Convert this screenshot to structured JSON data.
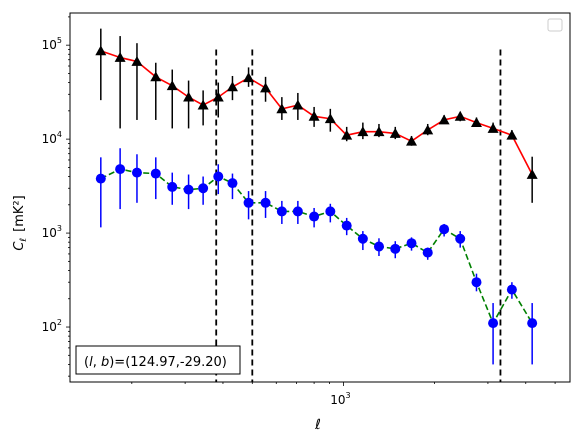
{
  "chart_data": {
    "type": "line",
    "xscale": "log",
    "yscale": "log",
    "xlim": [
      125,
      5600
    ],
    "ylim": [
      26,
      220000
    ],
    "xlabel": "ℓ",
    "ylabel_main": "C",
    "ylabel_sub": "ℓ",
    "ylabel_unit": "[mK²]",
    "x_major_ticks": [
      {
        "value": 1000,
        "base": "10",
        "exp": "3"
      }
    ],
    "y_major_ticks": [
      {
        "value": 100,
        "base": "10",
        "exp": "2"
      },
      {
        "value": 1000,
        "base": "10",
        "exp": "3"
      },
      {
        "value": 10000,
        "base": "10",
        "exp": "4"
      },
      {
        "value": 100000,
        "base": "10",
        "exp": "5"
      }
    ],
    "annotation": "(l, b)=(124.97,-29.20)",
    "annotation_parts": {
      "pre": "(",
      "l": "l",
      "comma": ", ",
      "b": "b",
      "post": ")=(124.97,-29.20)"
    },
    "vlines": [
      380,
      500,
      3300
    ],
    "vline_top": 90000,
    "series": [
      {
        "marker": "triangle",
        "color": "#000000",
        "line_color": "#ff0000",
        "line_style": "solid",
        "x": [
          158,
          183,
          208,
          240,
          272,
          308,
          344,
          386,
          430,
          486,
          553,
          626,
          707,
          800,
          905,
          1025,
          1159,
          1310,
          1483,
          1678,
          1898,
          2150,
          2430,
          2750,
          3120,
          3600,
          4200
        ],
        "y": [
          87000,
          74000,
          67000,
          46000,
          37000,
          28000,
          23000,
          28000,
          36000,
          45000,
          35000,
          21000,
          23000,
          17500,
          16500,
          11000,
          12000,
          12000,
          11500,
          9500,
          12500,
          16000,
          17500,
          15000,
          13000,
          11000,
          4200
        ],
        "yerr_low": [
          26000,
          13000,
          16000,
          16000,
          13000,
          13000,
          14000,
          17000,
          26000,
          36000,
          25000,
          16000,
          16000,
          13500,
          12000,
          9500,
          10000,
          10500,
          10000,
          8500,
          11000,
          14500,
          15500,
          13500,
          12000,
          10000,
          2100
        ],
        "yerr_high": [
          150000,
          125000,
          105000,
          65000,
          55000,
          42000,
          33000,
          40000,
          47000,
          58000,
          46000,
          28000,
          31000,
          22000,
          21000,
          13500,
          15000,
          14500,
          13500,
          10800,
          14500,
          18000,
          19500,
          17000,
          15000,
          12500,
          6500
        ]
      },
      {
        "marker": "circle",
        "color": "#0000ff",
        "line_color": "#008000",
        "line_style": "dashed",
        "x": [
          158,
          183,
          208,
          240,
          272,
          308,
          344,
          386,
          430,
          486,
          553,
          626,
          707,
          800,
          905,
          1025,
          1159,
          1310,
          1483,
          1678,
          1898,
          2150,
          2430,
          2750,
          3120,
          3600,
          4200
        ],
        "y": [
          3800,
          4800,
          4400,
          4300,
          3100,
          2900,
          3000,
          4000,
          3400,
          2100,
          2100,
          1700,
          1700,
          1500,
          1700,
          1200,
          870,
          720,
          680,
          780,
          620,
          1100,
          870,
          300,
          110,
          250,
          110
        ],
        "yerr_low": [
          1150,
          1800,
          2100,
          2300,
          2000,
          1800,
          2000,
          2600,
          2300,
          1400,
          1450,
          1250,
          1250,
          1150,
          1300,
          950,
          660,
          570,
          540,
          650,
          520,
          920,
          700,
          240,
          40,
          200,
          40
        ],
        "yerr_high": [
          6400,
          8000,
          6900,
          6400,
          4400,
          4200,
          4000,
          5400,
          4300,
          2800,
          2800,
          2200,
          2200,
          1850,
          2050,
          1450,
          1050,
          880,
          820,
          900,
          700,
          1250,
          1050,
          370,
          180,
          300,
          180
        ]
      }
    ]
  }
}
